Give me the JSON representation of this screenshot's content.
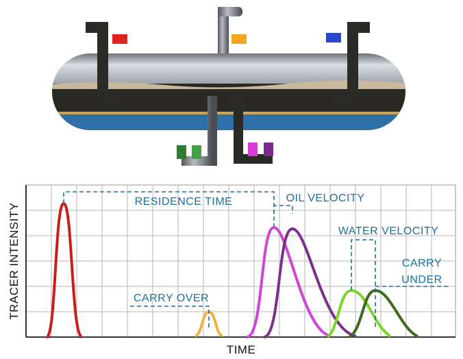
{
  "axes": {
    "y_label": "TRACER INTENSITY",
    "x_label": "TIME"
  },
  "annotations": {
    "residence_time": "RESIDENCE  TIME",
    "oil_velocity": "OIL VELOCITY",
    "water_velocity": "WATER VELOCITY",
    "carry_under_1": "CARRY",
    "carry_under_2": "UNDER",
    "carry_over": "CARRY OVER"
  }
}
